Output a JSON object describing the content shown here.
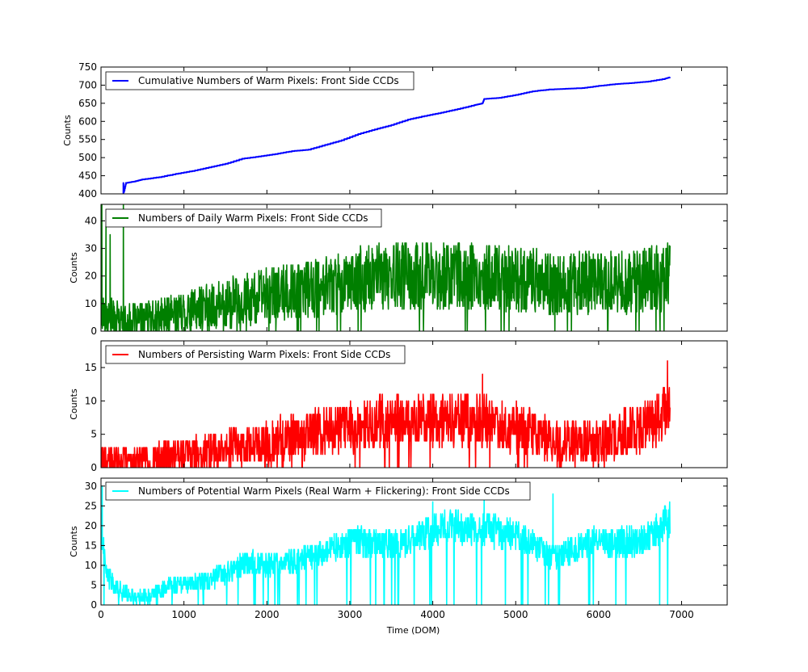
{
  "chart_data": [
    {
      "type": "line",
      "ylabel": "Counts",
      "xlim": [
        0,
        7550
      ],
      "ylim": [
        400,
        750
      ],
      "yticks": [
        400,
        450,
        500,
        550,
        600,
        650,
        700,
        750
      ],
      "legend": {
        "placement": "top-left",
        "label": "Cumulative Numbers of Warm Pixels: Front Side CCDs"
      },
      "color": "#0000ff",
      "x": [
        270,
        300,
        400,
        500,
        700,
        900,
        1100,
        1300,
        1500,
        1700,
        1900,
        2100,
        2300,
        2500,
        2700,
        2900,
        3100,
        3300,
        3500,
        3700,
        3900,
        4100,
        4300,
        4500,
        4600,
        4620,
        4800,
        5000,
        5200,
        5400,
        5600,
        5800,
        6000,
        6200,
        6400,
        6600,
        6800,
        6860
      ],
      "y": [
        400,
        430,
        434,
        440,
        446,
        455,
        463,
        473,
        483,
        497,
        503,
        510,
        518,
        522,
        535,
        548,
        565,
        578,
        590,
        605,
        615,
        624,
        634,
        645,
        650,
        662,
        665,
        673,
        683,
        688,
        690,
        692,
        698,
        703,
        706,
        710,
        718,
        722
      ]
    },
    {
      "type": "line",
      "ylabel": "Counts",
      "xlim": [
        0,
        7550
      ],
      "ylim": [
        0,
        46
      ],
      "yticks": [
        0,
        10,
        20,
        30,
        40
      ],
      "legend": {
        "placement": "top-left",
        "label": "Numbers of Daily Warm Pixels: Front Side CCDs"
      },
      "color": "#007f00",
      "series_x": [
        0,
        6860
      ],
      "trend_base_points": [
        [
          0,
          6
        ],
        [
          300,
          3
        ],
        [
          600,
          4
        ],
        [
          1000,
          7
        ],
        [
          1500,
          10
        ],
        [
          2000,
          13
        ],
        [
          2500,
          15
        ],
        [
          3000,
          19
        ],
        [
          3500,
          20
        ],
        [
          4000,
          20
        ],
        [
          4500,
          20
        ],
        [
          5000,
          19
        ],
        [
          5500,
          17
        ],
        [
          6000,
          18
        ],
        [
          6500,
          18
        ],
        [
          6860,
          20
        ]
      ],
      "spikes": [
        [
          10,
          46
        ],
        [
          60,
          38
        ],
        [
          110,
          35
        ],
        [
          270,
          46
        ]
      ],
      "amplitude": 14,
      "noise_seed": 17
    },
    {
      "type": "line",
      "ylabel": "Counts",
      "xlim": [
        0,
        7550
      ],
      "ylim": [
        0,
        19
      ],
      "yticks": [
        0,
        5,
        10,
        15
      ],
      "legend": {
        "placement": "top-left",
        "label": "Numbers of Persisting Warm Pixels: Front Side CCDs"
      },
      "color": "#ff0000",
      "series_x": [
        0,
        6860
      ],
      "trend_base_points": [
        [
          0,
          1
        ],
        [
          500,
          1
        ],
        [
          1000,
          2
        ],
        [
          1500,
          3
        ],
        [
          2000,
          4
        ],
        [
          2500,
          5
        ],
        [
          3000,
          6
        ],
        [
          3500,
          7
        ],
        [
          4000,
          7
        ],
        [
          4500,
          7
        ],
        [
          5000,
          6
        ],
        [
          5500,
          4
        ],
        [
          6000,
          4
        ],
        [
          6500,
          6
        ],
        [
          6860,
          9
        ]
      ],
      "spikes": [
        [
          4600,
          14
        ],
        [
          6830,
          16
        ]
      ],
      "amplitude": 5,
      "noise_seed": 29
    },
    {
      "type": "line",
      "ylabel": "Counts",
      "xlabel": "Time (DOM)",
      "xlim": [
        0,
        7550
      ],
      "xticks": [
        0,
        1000,
        2000,
        3000,
        4000,
        5000,
        6000,
        7000
      ],
      "ylim": [
        0,
        32
      ],
      "yticks": [
        0,
        5,
        10,
        15,
        20,
        25,
        30
      ],
      "legend": {
        "placement": "top-left",
        "label": "Numbers of Potential Warm Pixels (Real Warm + Flickering): Front Side CCDs"
      },
      "color": "#00ffff",
      "series_x": [
        0,
        6860
      ],
      "trend_base_points": [
        [
          0,
          20
        ],
        [
          60,
          8
        ],
        [
          200,
          4
        ],
        [
          400,
          2
        ],
        [
          600,
          2
        ],
        [
          800,
          5
        ],
        [
          1000,
          5
        ],
        [
          1300,
          6
        ],
        [
          1600,
          9
        ],
        [
          1800,
          11
        ],
        [
          2000,
          10
        ],
        [
          2300,
          11
        ],
        [
          2600,
          13
        ],
        [
          2900,
          15
        ],
        [
          3100,
          16
        ],
        [
          3400,
          15
        ],
        [
          3700,
          16
        ],
        [
          4000,
          19
        ],
        [
          4300,
          20
        ],
        [
          4600,
          19
        ],
        [
          4900,
          18
        ],
        [
          5200,
          16
        ],
        [
          5400,
          12
        ],
        [
          5600,
          13
        ],
        [
          5900,
          16
        ],
        [
          6200,
          16
        ],
        [
          6500,
          16
        ],
        [
          6700,
          19
        ],
        [
          6860,
          22
        ]
      ],
      "spikes": [
        [
          15,
          30
        ],
        [
          4000,
          26
        ],
        [
          4620,
          27
        ],
        [
          5450,
          28
        ]
      ],
      "amplitude": 4,
      "noise_seed": 41
    }
  ]
}
